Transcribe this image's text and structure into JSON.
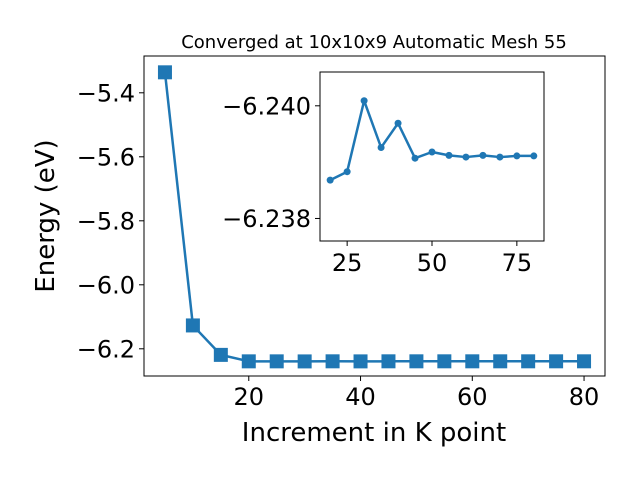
{
  "chart_data": [
    {
      "type": "line",
      "title": "Converged at 10x10x9 Automatic Mesh 55",
      "xlabel": "Increment in K point",
      "ylabel": "Energy (eV)",
      "xlim": [
        1.25,
        83.75
      ],
      "ylim": [
        -6.285,
        -5.285
      ],
      "x_ticks": [
        20,
        40,
        60,
        80
      ],
      "y_ticks": [
        -6.2,
        -6.0,
        -5.8,
        -5.6,
        -5.4
      ],
      "x_tick_labels": [
        "20",
        "40",
        "60",
        "80"
      ],
      "y_tick_labels": [
        "−6.2",
        "−6.0",
        "−5.8",
        "−5.6",
        "−5.4"
      ],
      "marker": "square",
      "color": "#1f77b4",
      "grid": false,
      "series": [
        {
          "x": [
            5,
            10,
            15,
            20,
            25,
            30,
            35,
            40,
            45,
            50,
            55,
            60,
            65,
            70,
            75,
            80
          ],
          "y": [
            -5.336,
            -6.127,
            -6.219,
            -6.2392,
            -6.2392,
            -6.2394,
            -6.2391,
            -6.2393,
            -6.2391,
            -6.2391,
            -6.2391,
            -6.2391,
            -6.2391,
            -6.2391,
            -6.2391,
            -6.2391
          ]
        }
      ]
    },
    {
      "type": "line",
      "inset": true,
      "title": "",
      "xlabel": "",
      "ylabel": "",
      "xlim": [
        17.0,
        83.0
      ],
      "ylim": [
        -6.2376,
        -6.2406
      ],
      "x_ticks": [
        25,
        50,
        75
      ],
      "y_ticks": [
        -6.24,
        -6.238
      ],
      "x_tick_labels": [
        "25",
        "50",
        "75"
      ],
      "y_tick_labels": [
        "−6.240",
        "−6.238"
      ],
      "marker": "circle",
      "color": "#1f77b4",
      "grid": false,
      "series": [
        {
          "x": [
            20,
            25,
            30,
            35,
            40,
            45,
            50,
            55,
            60,
            65,
            70,
            75,
            80
          ],
          "y": [
            -6.23868,
            -6.23883,
            -6.24009,
            -6.23926,
            -6.23969,
            -6.23907,
            -6.23918,
            -6.23912,
            -6.23909,
            -6.23912,
            -6.23909,
            -6.23911,
            -6.23911
          ]
        }
      ]
    }
  ]
}
